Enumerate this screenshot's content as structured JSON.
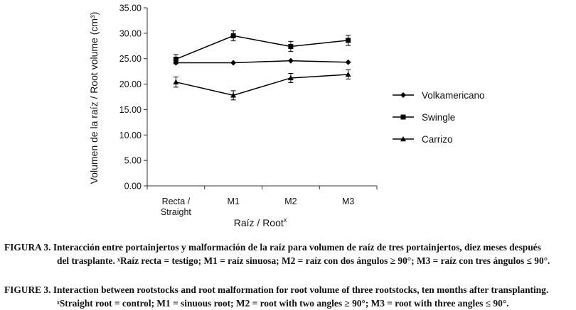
{
  "chart_data": {
    "type": "line",
    "categories": [
      {
        "line1": "Recta /",
        "line2": "Straight"
      },
      {
        "line1": "M1",
        "line2": ""
      },
      {
        "line1": "M2",
        "line2": ""
      },
      {
        "line1": "M3",
        "line2": ""
      }
    ],
    "ylabel": "Volumen de la raíz / Root volume (cm³)",
    "xlabel": "Raíz / Root",
    "xlabel_sup": "x",
    "ylim": [
      0,
      35
    ],
    "yticks": [
      "0.00",
      "5.00",
      "10.00",
      "15.00",
      "20.00",
      "25.00",
      "30.00",
      "35.00"
    ],
    "series": [
      {
        "name": "Volkamericano",
        "marker": "diamond",
        "values": [
          24.2,
          24.2,
          24.6,
          24.3
        ],
        "errors": [
          0,
          0,
          0,
          0
        ]
      },
      {
        "name": "Swingle",
        "marker": "square",
        "values": [
          24.9,
          29.5,
          27.4,
          28.6
        ],
        "errors": [
          0.9,
          1.0,
          1.0,
          1.0
        ]
      },
      {
        "name": "Carrizo",
        "marker": "triangle",
        "values": [
          20.4,
          17.8,
          21.2,
          21.9
        ],
        "errors": [
          1.0,
          0.9,
          0.9,
          0.9
        ]
      }
    ]
  },
  "captions": {
    "es": {
      "line1": "FIGURA 3. Interacción entre portainjertos y malformación de la raíz para volumen de raíz de tres portainjertos, diez meses después",
      "line2": "del trasplante. ˣRaíz recta = testigo;  M1 = raíz sinuosa; M2 = raíz con dos ángulos ≥ 90°; M3 = raíz con tres ángulos ≤ 90°."
    },
    "en": {
      "line1": "FIGURE 3. Interaction between rootstocks and root malformation for root volume of three rootstocks, ten months after transplanting.",
      "line2": "ˣStraight root = control; M1 = sinuous root; M2 = root with two angles ≥ 90°; M3 = root with three angles ≤ 90°."
    }
  }
}
